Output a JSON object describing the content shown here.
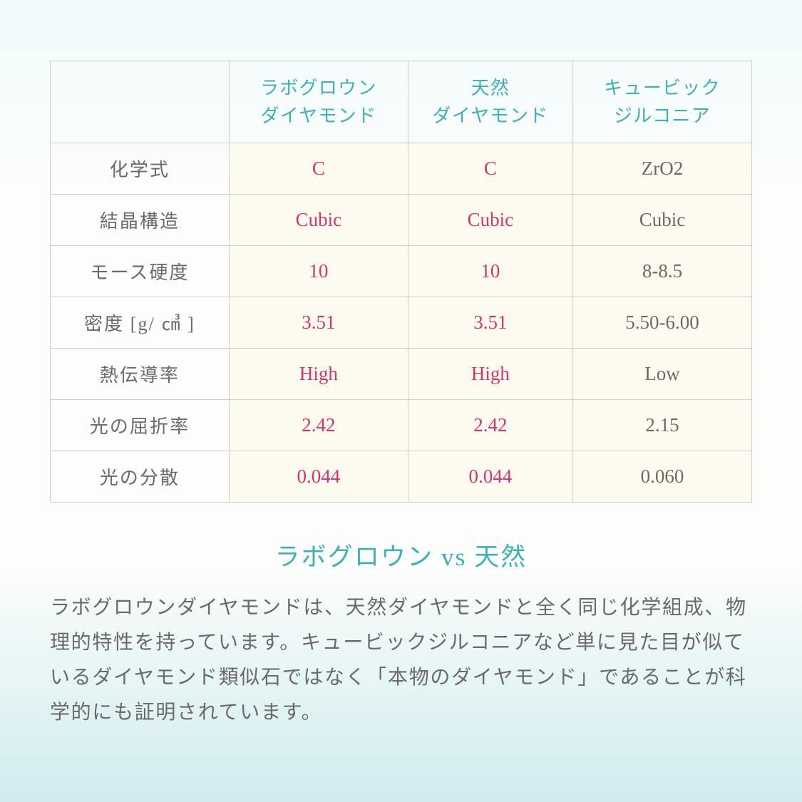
{
  "table": {
    "columns": [
      "",
      "ラボグロウン\nダイヤモンド",
      "天然\nダイヤモンド",
      "キュービック\nジルコニア"
    ],
    "column_colors": {
      "header_text": "#3db1b6"
    },
    "col_widths_pct": [
      25.5,
      25.5,
      23.5,
      25.5
    ],
    "row_label_color": "#6a6a6a",
    "highlight_text_color": "#d6346b",
    "plain_text_color": "#6a6a6a",
    "cell_bg": "#fdfaf0",
    "border_color": "#cfcfcf",
    "header_fontsize": 26,
    "cell_fontsize": 27,
    "rows": [
      {
        "label": "化学式",
        "a": "C",
        "b": "C",
        "c": "ZrO2"
      },
      {
        "label": "結晶構造",
        "a": "Cubic",
        "b": "Cubic",
        "c": "Cubic"
      },
      {
        "label": "モース硬度",
        "a": "10",
        "b": "10",
        "c": "8-8.5"
      },
      {
        "label": "密度 [g/ ㎤ ]",
        "a": "3.51",
        "b": "3.51",
        "c": "5.50-6.00"
      },
      {
        "label": "熱伝導率",
        "a": "High",
        "b": "High",
        "c": "Low"
      },
      {
        "label": "光の屈折率",
        "a": "2.42",
        "b": "2.42",
        "c": "2.15"
      },
      {
        "label": "光の分散",
        "a": "0.044",
        "b": "0.044",
        "c": "0.060"
      }
    ]
  },
  "heading": "ラボグロウン vs 天然",
  "heading_color": "#3db1b6",
  "heading_fontsize": 35,
  "body_text": "ラボグロウンダイヤモンドは、天然ダイヤモンドと全く同じ化学組成、物理的特性を持っています。キュービックジルコニアなど単に見た目が似ているダイヤモンド類似石ではなく「本物のダイヤモンド」であることが科学的にも証明されています。",
  "body_text_color": "#6a6a6a",
  "body_fontsize": 28,
  "background_gradient": [
    "#f0fafb",
    "#fdfdfc",
    "#fdfdfc",
    "#d0ecef"
  ]
}
